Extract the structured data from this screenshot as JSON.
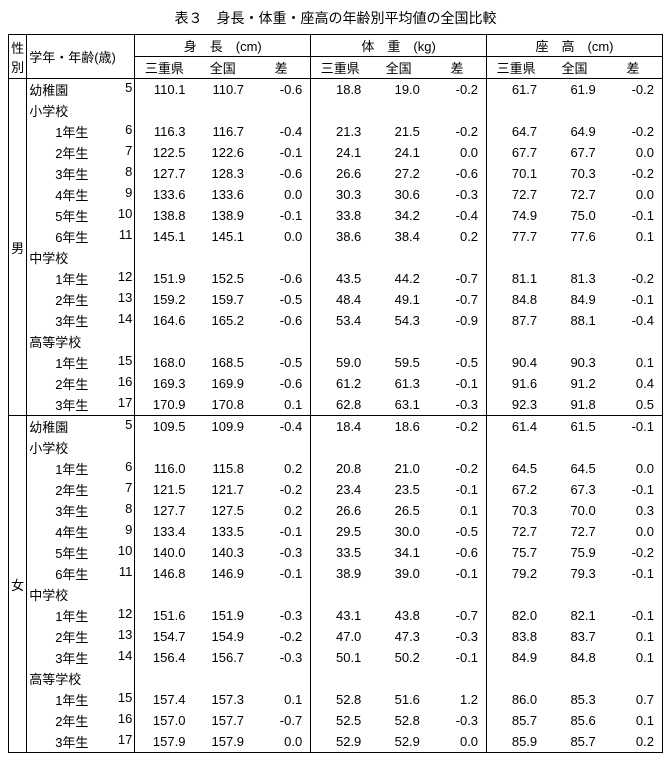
{
  "title": "表３　身長・体重・座高の年齢別平均値の全国比較",
  "header": {
    "sex": "性別",
    "grade": "学年・年齢(歳)",
    "groups": [
      "身　長　(cm)",
      "体　重　(kg)",
      "座　高　(cm)"
    ],
    "sub": [
      "三重県",
      "全国",
      "差"
    ]
  },
  "sections": [
    {
      "sex": "男",
      "rows": [
        {
          "t": "s",
          "label": "幼稚園",
          "age": "5",
          "v": [
            "110.1",
            "110.7",
            "-0.6",
            "18.8",
            "19.0",
            "-0.2",
            "61.7",
            "61.9",
            "-0.2"
          ]
        },
        {
          "t": "h",
          "label": "小学校"
        },
        {
          "t": "y",
          "label": "1年生",
          "age": "6",
          "v": [
            "116.3",
            "116.7",
            "-0.4",
            "21.3",
            "21.5",
            "-0.2",
            "64.7",
            "64.9",
            "-0.2"
          ]
        },
        {
          "t": "y",
          "label": "2年生",
          "age": "7",
          "v": [
            "122.5",
            "122.6",
            "-0.1",
            "24.1",
            "24.1",
            "0.0",
            "67.7",
            "67.7",
            "0.0"
          ]
        },
        {
          "t": "y",
          "label": "3年生",
          "age": "8",
          "v": [
            "127.7",
            "128.3",
            "-0.6",
            "26.6",
            "27.2",
            "-0.6",
            "70.1",
            "70.3",
            "-0.2"
          ]
        },
        {
          "t": "y",
          "label": "4年生",
          "age": "9",
          "v": [
            "133.6",
            "133.6",
            "0.0",
            "30.3",
            "30.6",
            "-0.3",
            "72.7",
            "72.7",
            "0.0"
          ]
        },
        {
          "t": "y",
          "label": "5年生",
          "age": "10",
          "v": [
            "138.8",
            "138.9",
            "-0.1",
            "33.8",
            "34.2",
            "-0.4",
            "74.9",
            "75.0",
            "-0.1"
          ]
        },
        {
          "t": "y",
          "label": "6年生",
          "age": "11",
          "v": [
            "145.1",
            "145.1",
            "0.0",
            "38.6",
            "38.4",
            "0.2",
            "77.7",
            "77.6",
            "0.1"
          ]
        },
        {
          "t": "h",
          "label": "中学校"
        },
        {
          "t": "y",
          "label": "1年生",
          "age": "12",
          "v": [
            "151.9",
            "152.5",
            "-0.6",
            "43.5",
            "44.2",
            "-0.7",
            "81.1",
            "81.3",
            "-0.2"
          ]
        },
        {
          "t": "y",
          "label": "2年生",
          "age": "13",
          "v": [
            "159.2",
            "159.7",
            "-0.5",
            "48.4",
            "49.1",
            "-0.7",
            "84.8",
            "84.9",
            "-0.1"
          ]
        },
        {
          "t": "y",
          "label": "3年生",
          "age": "14",
          "v": [
            "164.6",
            "165.2",
            "-0.6",
            "53.4",
            "54.3",
            "-0.9",
            "87.7",
            "88.1",
            "-0.4"
          ]
        },
        {
          "t": "h",
          "label": "高等学校"
        },
        {
          "t": "y",
          "label": "1年生",
          "age": "15",
          "v": [
            "168.0",
            "168.5",
            "-0.5",
            "59.0",
            "59.5",
            "-0.5",
            "90.4",
            "90.3",
            "0.1"
          ]
        },
        {
          "t": "y",
          "label": "2年生",
          "age": "16",
          "v": [
            "169.3",
            "169.9",
            "-0.6",
            "61.2",
            "61.3",
            "-0.1",
            "91.6",
            "91.2",
            "0.4"
          ]
        },
        {
          "t": "y",
          "label": "3年生",
          "age": "17",
          "v": [
            "170.9",
            "170.8",
            "0.1",
            "62.8",
            "63.1",
            "-0.3",
            "92.3",
            "91.8",
            "0.5"
          ]
        }
      ]
    },
    {
      "sex": "女",
      "rows": [
        {
          "t": "s",
          "label": "幼稚園",
          "age": "5",
          "v": [
            "109.5",
            "109.9",
            "-0.4",
            "18.4",
            "18.6",
            "-0.2",
            "61.4",
            "61.5",
            "-0.1"
          ]
        },
        {
          "t": "h",
          "label": "小学校"
        },
        {
          "t": "y",
          "label": "1年生",
          "age": "6",
          "v": [
            "116.0",
            "115.8",
            "0.2",
            "20.8",
            "21.0",
            "-0.2",
            "64.5",
            "64.5",
            "0.0"
          ]
        },
        {
          "t": "y",
          "label": "2年生",
          "age": "7",
          "v": [
            "121.5",
            "121.7",
            "-0.2",
            "23.4",
            "23.5",
            "-0.1",
            "67.2",
            "67.3",
            "-0.1"
          ]
        },
        {
          "t": "y",
          "label": "3年生",
          "age": "8",
          "v": [
            "127.7",
            "127.5",
            "0.2",
            "26.6",
            "26.5",
            "0.1",
            "70.3",
            "70.0",
            "0.3"
          ]
        },
        {
          "t": "y",
          "label": "4年生",
          "age": "9",
          "v": [
            "133.4",
            "133.5",
            "-0.1",
            "29.5",
            "30.0",
            "-0.5",
            "72.7",
            "72.7",
            "0.0"
          ]
        },
        {
          "t": "y",
          "label": "5年生",
          "age": "10",
          "v": [
            "140.0",
            "140.3",
            "-0.3",
            "33.5",
            "34.1",
            "-0.6",
            "75.7",
            "75.9",
            "-0.2"
          ]
        },
        {
          "t": "y",
          "label": "6年生",
          "age": "11",
          "v": [
            "146.8",
            "146.9",
            "-0.1",
            "38.9",
            "39.0",
            "-0.1",
            "79.2",
            "79.3",
            "-0.1"
          ]
        },
        {
          "t": "h",
          "label": "中学校"
        },
        {
          "t": "y",
          "label": "1年生",
          "age": "12",
          "v": [
            "151.6",
            "151.9",
            "-0.3",
            "43.1",
            "43.8",
            "-0.7",
            "82.0",
            "82.1",
            "-0.1"
          ]
        },
        {
          "t": "y",
          "label": "2年生",
          "age": "13",
          "v": [
            "154.7",
            "154.9",
            "-0.2",
            "47.0",
            "47.3",
            "-0.3",
            "83.8",
            "83.7",
            "0.1"
          ]
        },
        {
          "t": "y",
          "label": "3年生",
          "age": "14",
          "v": [
            "156.4",
            "156.7",
            "-0.3",
            "50.1",
            "50.2",
            "-0.1",
            "84.9",
            "84.8",
            "0.1"
          ]
        },
        {
          "t": "h",
          "label": "高等学校"
        },
        {
          "t": "y",
          "label": "1年生",
          "age": "15",
          "v": [
            "157.4",
            "157.3",
            "0.1",
            "52.8",
            "51.6",
            "1.2",
            "86.0",
            "85.3",
            "0.7"
          ]
        },
        {
          "t": "y",
          "label": "2年生",
          "age": "16",
          "v": [
            "157.0",
            "157.7",
            "-0.7",
            "52.5",
            "52.8",
            "-0.3",
            "85.7",
            "85.6",
            "0.1"
          ]
        },
        {
          "t": "y",
          "label": "3年生",
          "age": "17",
          "v": [
            "157.9",
            "157.9",
            "0.0",
            "52.9",
            "52.9",
            "0.0",
            "85.9",
            "85.7",
            "0.2"
          ]
        }
      ]
    }
  ]
}
